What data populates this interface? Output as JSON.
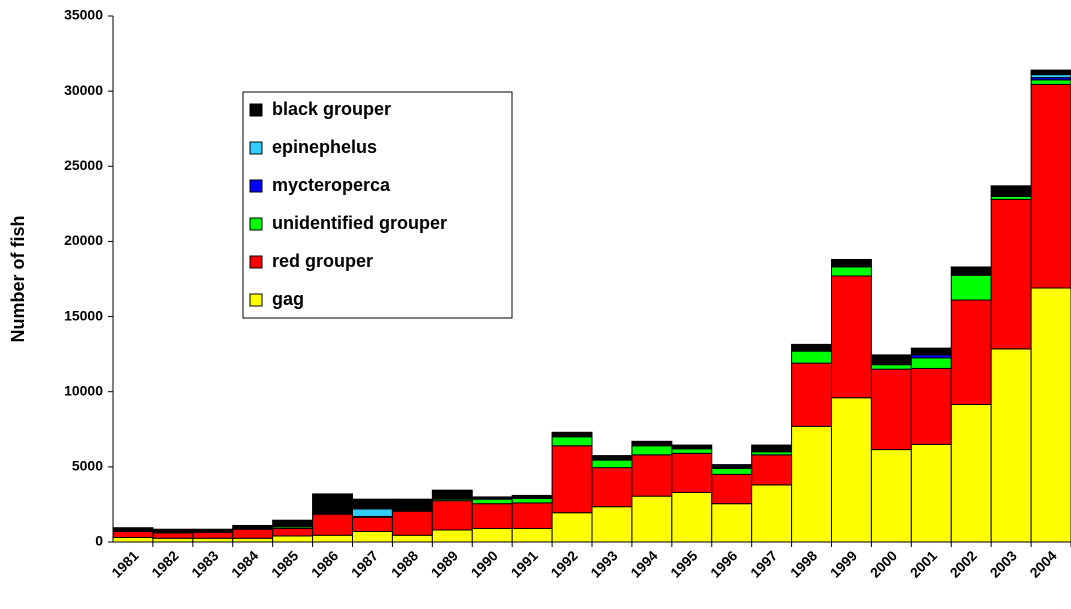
{
  "chart_data": {
    "type": "stacked_bar",
    "y_label": "Number of fish",
    "categories": [
      "1981",
      "1982",
      "1983",
      "1984",
      "1985",
      "1986",
      "1987",
      "1988",
      "1989",
      "1990",
      "1991",
      "1992",
      "1993",
      "1994",
      "1995",
      "1996",
      "1997",
      "1998",
      "1999",
      "2000",
      "2001",
      "2002",
      "2003",
      "2004"
    ],
    "series": [
      {
        "name": "gag",
        "color": "#ffff00",
        "values": [
          300,
          250,
          250,
          250,
          400,
          450,
          700,
          450,
          800,
          900,
          900,
          1950,
          2350,
          3050,
          3300,
          2550,
          3800,
          7700,
          9600,
          6150,
          6500,
          9150,
          12850,
          16900
        ]
      },
      {
        "name": "red grouper",
        "color": "#ff0000",
        "values": [
          400,
          350,
          400,
          600,
          500,
          1400,
          950,
          1600,
          1950,
          1650,
          1700,
          4450,
          2600,
          2750,
          2600,
          1950,
          2000,
          4200,
          8100,
          5350,
          5050,
          6950,
          9950,
          13550
        ]
      },
      {
        "name": "unidentified grouper",
        "color": "#00ff00",
        "values": [
          50,
          50,
          30,
          50,
          100,
          50,
          50,
          50,
          100,
          300,
          300,
          600,
          500,
          600,
          300,
          400,
          200,
          800,
          600,
          300,
          700,
          1650,
          200,
          300
        ]
      },
      {
        "name": "mycteroperca",
        "color": "#0000ff",
        "values": [
          0,
          0,
          0,
          0,
          0,
          0,
          0,
          0,
          0,
          0,
          0,
          0,
          0,
          0,
          0,
          0,
          0,
          0,
          0,
          0,
          200,
          0,
          0,
          150
        ]
      },
      {
        "name": "epinephelus",
        "color": "#33ccff",
        "values": [
          0,
          0,
          0,
          0,
          0,
          0,
          500,
          0,
          0,
          0,
          0,
          0,
          0,
          0,
          0,
          0,
          0,
          0,
          0,
          0,
          0,
          0,
          0,
          200
        ]
      },
      {
        "name": "black grouper",
        "color": "#000000",
        "values": [
          200,
          200,
          170,
          200,
          450,
          1300,
          650,
          750,
          600,
          150,
          200,
          300,
          300,
          300,
          250,
          250,
          450,
          450,
          500,
          650,
          450,
          550,
          700,
          300
        ]
      }
    ],
    "ylim": [
      0,
      35000
    ],
    "yticks": [
      0,
      5000,
      10000,
      15000,
      20000,
      25000,
      30000,
      35000
    ]
  }
}
